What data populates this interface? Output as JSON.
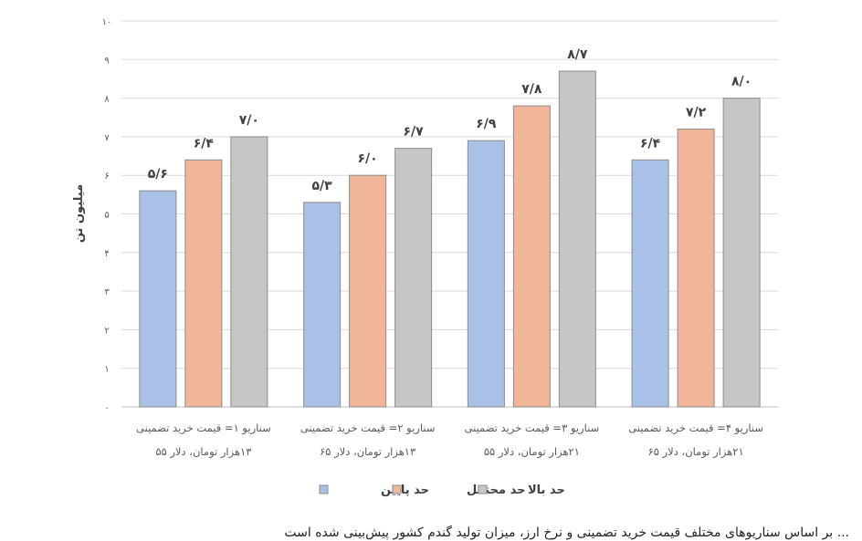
{
  "chart_data": {
    "type": "bar",
    "title": "",
    "ylabel": "میلیون تن",
    "xlabel": "",
    "ylim": [
      0,
      10
    ],
    "grid": true,
    "yticks": [
      "۰",
      "۱",
      "۲",
      "۳",
      "۴",
      "۵",
      "۶",
      "۷",
      "۸",
      "۹",
      "۱۰"
    ],
    "categories": [
      [
        "سناریو ۱= قیمت خرید تضمینی",
        "۱۳هزار تومان، دلار ۵۵"
      ],
      [
        "سناریو ۲= قیمت خرید تضمینی",
        "۱۳هزار تومان، دلار ۶۵"
      ],
      [
        "سناریو ۳= قیمت خرید تضمینی",
        "۲۱هزار تومان، دلار ۵۵"
      ],
      [
        "سناریو ۴= قیمت خرید تضمینی",
        "۲۱هزار تومان، دلار ۶۵"
      ]
    ],
    "series": [
      {
        "name": "حد پایین",
        "color": "#a9c1e6",
        "values": [
          5.6,
          5.3,
          6.9,
          6.4
        ],
        "labels": [
          "۵/۶",
          "۵/۳",
          "۶/۹",
          "۶/۴"
        ]
      },
      {
        "name": "حد محتمل",
        "color": "#f1b69a",
        "values": [
          6.4,
          6.0,
          7.8,
          7.2
        ],
        "labels": [
          "۶/۴",
          "۶/۰",
          "۷/۸",
          "۷/۲"
        ]
      },
      {
        "name": "حد بالا",
        "color": "#c6c6c6",
        "values": [
          7.0,
          6.7,
          8.7,
          8.0
        ],
        "labels": [
          "۷/۰",
          "۶/۷",
          "۸/۷",
          "۸/۰"
        ]
      }
    ],
    "legend": "bottom-center"
  },
  "footer": {
    "text": "... بر اساس سناریوهای مختلف قیمت خرید تضمینی و نرخ ارز، میزان تولید گندم کشور پیش‌بینی شده است"
  }
}
